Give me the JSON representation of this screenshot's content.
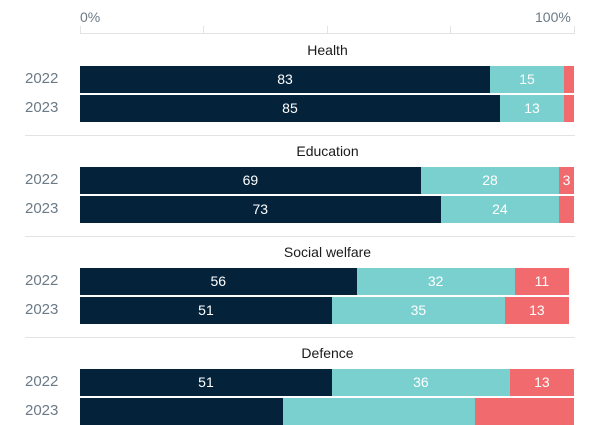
{
  "chart_data": {
    "type": "bar",
    "orientation": "horizontal-stacked",
    "axis": {
      "min_label": "0%",
      "max_label": "100%",
      "range": [
        0,
        100
      ]
    },
    "colors": [
      "#04233b",
      "#7acfcf",
      "#f06a6e"
    ],
    "groups": [
      {
        "title": "Health",
        "rows": [
          {
            "year": "2022",
            "values": [
              83,
              15,
              2
            ],
            "labels": [
              "83",
              "15",
              ""
            ]
          },
          {
            "year": "2023",
            "values": [
              85,
              13,
              2
            ],
            "labels": [
              "85",
              "13",
              ""
            ]
          }
        ]
      },
      {
        "title": "Education",
        "rows": [
          {
            "year": "2022",
            "values": [
              69,
              28,
              3
            ],
            "labels": [
              "69",
              "28",
              "3"
            ]
          },
          {
            "year": "2023",
            "values": [
              73,
              24,
              3
            ],
            "labels": [
              "73",
              "24",
              ""
            ]
          }
        ]
      },
      {
        "title": "Social welfare",
        "rows": [
          {
            "year": "2022",
            "values": [
              56,
              32,
              11
            ],
            "labels": [
              "56",
              "32",
              "11"
            ]
          },
          {
            "year": "2023",
            "values": [
              51,
              35,
              13
            ],
            "labels": [
              "51",
              "35",
              "13"
            ]
          }
        ]
      },
      {
        "title": "Defence",
        "rows": [
          {
            "year": "2022",
            "values": [
              51,
              36,
              13
            ],
            "labels": [
              "51",
              "36",
              "13"
            ]
          },
          {
            "year": "2023",
            "values": [
              41,
              39,
              20
            ],
            "labels": [
              "",
              "",
              ""
            ]
          }
        ]
      }
    ]
  }
}
